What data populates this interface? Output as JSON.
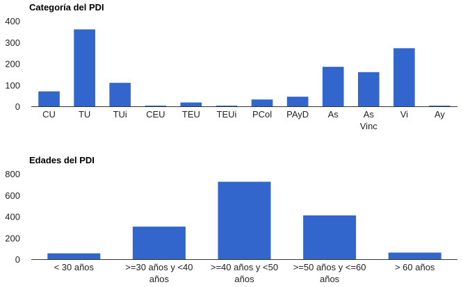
{
  "chart_data": [
    {
      "type": "bar",
      "title": "Categoría del PDI",
      "categories": [
        "CU",
        "TU",
        "TUi",
        "CEU",
        "TEU",
        "TEUi",
        "PCol",
        "PAyD",
        "As",
        "As Vinc",
        "Vi",
        "Ay"
      ],
      "category_lines": [
        [
          "CU"
        ],
        [
          "TU"
        ],
        [
          "TUi"
        ],
        [
          "CEU"
        ],
        [
          "TEU"
        ],
        [
          "TEUi"
        ],
        [
          "PCol"
        ],
        [
          "PAyD"
        ],
        [
          "As"
        ],
        [
          "As",
          "Vinc"
        ],
        [
          "Vi"
        ],
        [
          "Ay"
        ]
      ],
      "values": [
        70,
        360,
        110,
        3,
        18,
        1,
        32,
        45,
        185,
        160,
        272,
        3
      ],
      "ylim": [
        0,
        400
      ],
      "yticks": [
        0,
        100,
        200,
        300,
        400
      ],
      "ytick_labels": [
        "0",
        "100",
        "200",
        "300",
        "400"
      ],
      "grid": false,
      "legend": "none",
      "color": "#3366cc",
      "xlabel": "",
      "ylabel": ""
    },
    {
      "type": "bar",
      "title": "Edades del PDI",
      "categories": [
        "< 30 años",
        ">=30 años y <40 años",
        ">=40 años y <50 años",
        ">=50 años y <=60 años",
        "> 60 años"
      ],
      "category_lines": [
        [
          "< 30 años"
        ],
        [
          ">=30 años y <40",
          "años"
        ],
        [
          ">=40 años y <50",
          "años"
        ],
        [
          ">=50 años y <=60",
          "años"
        ],
        [
          "> 60 años"
        ]
      ],
      "values": [
        55,
        305,
        725,
        410,
        62
      ],
      "ylim": [
        0,
        800
      ],
      "yticks": [
        0,
        200,
        400,
        600,
        800
      ],
      "ytick_labels": [
        "0",
        "200",
        "400",
        "600",
        "800"
      ],
      "grid": false,
      "legend": "none",
      "color": "#3366cc",
      "xlabel": "",
      "ylabel": ""
    }
  ]
}
